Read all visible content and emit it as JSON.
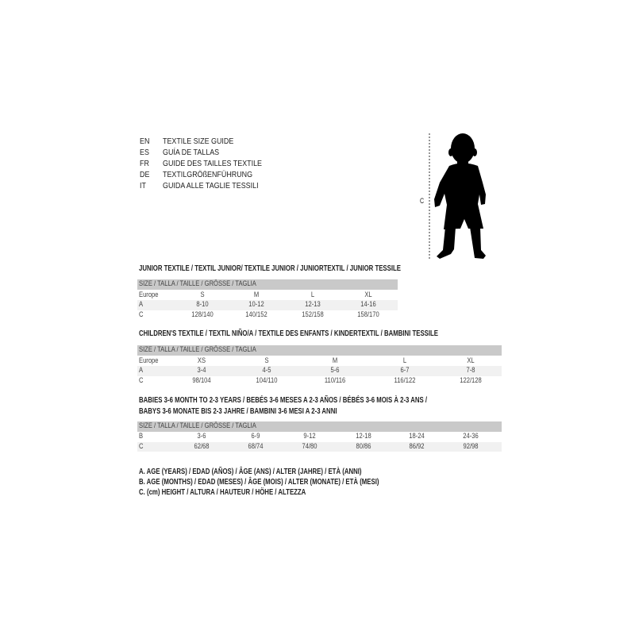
{
  "languages": [
    {
      "code": "EN",
      "text": "TEXTILE SIZE GUIDE"
    },
    {
      "code": "ES",
      "text": "GUÍA DE TALLAS"
    },
    {
      "code": "FR",
      "text": "GUIDE DES TAILLES TEXTILE"
    },
    {
      "code": "DE",
      "text": "TEXTILGRÖßENFÜHRUNG"
    },
    {
      "code": "IT",
      "text": "GUIDA ALLE TAGLIE TESSILI"
    }
  ],
  "figure": {
    "height_label": "C"
  },
  "junior": {
    "title": "JUNIOR TEXTILE / TEXTIL JUNIOR/ TEXTILE JUNIOR / JUNIORTEXTIL / JUNIOR TESSILE",
    "header": "SIZE / TALLA / TAILLE / GRÖSSE / TAGLIA",
    "rows": [
      {
        "label": "Europe",
        "values": [
          "S",
          "M",
          "L",
          "XL"
        ]
      },
      {
        "label": "A",
        "values": [
          "8-10",
          "10-12",
          "12-13",
          "14-16"
        ]
      },
      {
        "label": "C",
        "values": [
          "128/140",
          "140/152",
          "152/158",
          "158/170"
        ]
      }
    ]
  },
  "children": {
    "title": "CHILDREN'S TEXTILE / TEXTIL NIÑO/A / TEXTILE DES ENFANTS / KINDERTEXTIL / BAMBINI TESSILE",
    "header": "SIZE / TALLA / TAILLE / GRÖSSE / TAGLIA",
    "rows": [
      {
        "label": "Europe",
        "values": [
          "XS",
          "S",
          "M",
          "L",
          "XL"
        ]
      },
      {
        "label": "A",
        "values": [
          "3-4",
          "4-5",
          "5-6",
          "6-7",
          "7-8"
        ]
      },
      {
        "label": "C",
        "values": [
          "98/104",
          "104/110",
          "110/116",
          "116/122",
          "122/128"
        ]
      }
    ]
  },
  "babies": {
    "title_line1": "BABIES 3-6 MONTH TO 2-3 YEARS / BEBÉS 3-6 MESES A 2-3 AÑOS / BÉBÉS 3-6 MOIS À 2-3 ANS /",
    "title_line2": "BABYS 3-6 MONATE BIS 2-3 JAHRE / BAMBINI 3-6 MESI A 2-3 ANNI",
    "header": "SIZE / TALLA / TAILLE / GRÖSSE / TAGLIA",
    "rows": [
      {
        "label": "B",
        "values": [
          "3-6",
          "6-9",
          "9-12",
          "12-18",
          "18-24",
          "24-36"
        ]
      },
      {
        "label": "C",
        "values": [
          "62/68",
          "68/74",
          "74/80",
          "80/86",
          "86/92",
          "92/98"
        ]
      }
    ]
  },
  "legend": [
    "A. AGE (YEARS) / EDAD (AÑOS) / ÂGE (ANS) / ALTER (JAHRE) / ETÀ (ANNI)",
    "B. AGE (MONTHS) / EDAD (MESES) / ÂGE (MOIS) / ALTER (MONATE) / ETÀ (MESI)",
    "C. (cm) HEIGHT / ALTURA / HAUTEUR / HÖHE / ALTEZZA"
  ]
}
